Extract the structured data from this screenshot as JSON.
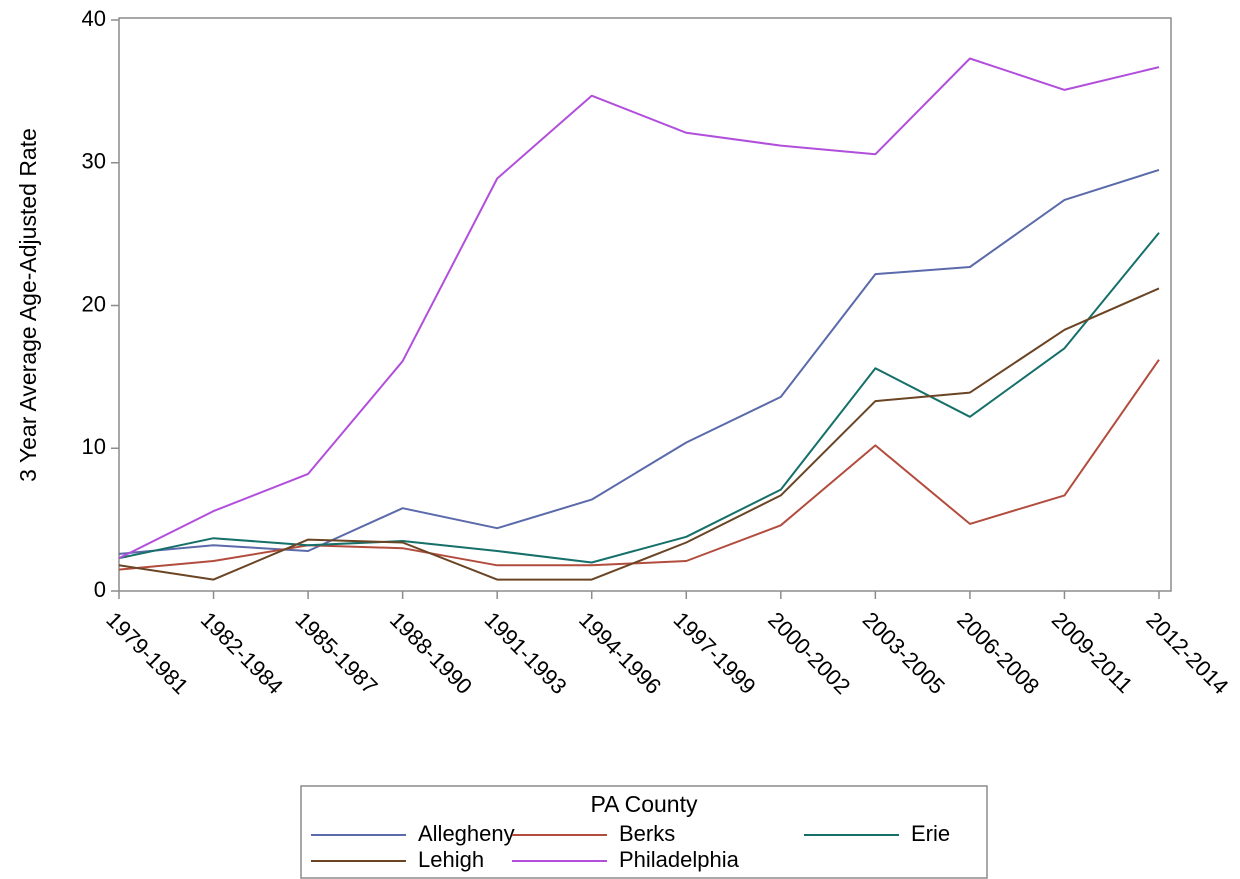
{
  "chart_data": {
    "type": "line",
    "title": "",
    "xlabel": "",
    "ylabel": "3 Year Average Age-Adjusted Rate",
    "ylim": [
      0,
      40
    ],
    "yticks": [
      0,
      10,
      20,
      30,
      40
    ],
    "grid": false,
    "legend_placement": "bottom",
    "legend_title": "PA County",
    "categories": [
      "1979-1981",
      "1982-1984",
      "1985-1987",
      "1988-1990",
      "1991-1993",
      "1994-1996",
      "1997-1999",
      "2000-2002",
      "2003-2005",
      "2006-2008",
      "2009-2011",
      "2012-2014"
    ],
    "series": [
      {
        "name": "Allegheny",
        "color": "#5a6aaa",
        "values": [
          2.6,
          3.2,
          2.8,
          5.8,
          4.4,
          6.4,
          10.4,
          13.6,
          22.2,
          22.7,
          27.4,
          29.5
        ]
      },
      {
        "name": "Berks",
        "color": "#b24d3e",
        "values": [
          1.5,
          2.1,
          3.2,
          3.0,
          1.8,
          1.8,
          2.1,
          4.6,
          10.2,
          4.7,
          6.7,
          16.2
        ]
      },
      {
        "name": "Erie",
        "color": "#157069",
        "values": [
          2.3,
          3.7,
          3.2,
          3.5,
          2.8,
          2.0,
          3.8,
          7.1,
          15.6,
          12.2,
          17.0,
          25.1
        ]
      },
      {
        "name": "Lehigh",
        "color": "#6b4424",
        "values": [
          1.8,
          0.8,
          3.6,
          3.4,
          0.8,
          0.8,
          3.4,
          6.7,
          13.3,
          13.9,
          18.3,
          21.2
        ]
      },
      {
        "name": "Philadelphia",
        "color": "#b14fdc",
        "values": [
          2.3,
          5.6,
          8.2,
          16.1,
          28.9,
          34.7,
          32.1,
          31.2,
          30.6,
          37.3,
          35.1,
          36.7
        ]
      }
    ]
  }
}
